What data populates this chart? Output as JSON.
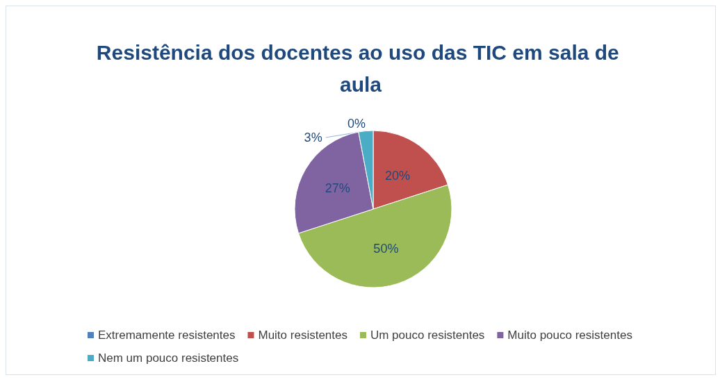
{
  "chart_data": {
    "type": "pie",
    "title": "Resistência dos docentes ao uso das TIC em sala de aula",
    "categories": [
      "Extremamente resistentes",
      "Muito resistentes",
      "Um pouco resistentes",
      "Muito pouco resistentes",
      "Nem um pouco resistentes"
    ],
    "values": [
      0,
      20,
      50,
      27,
      3
    ],
    "colors": [
      "#4f81bd",
      "#c0504d",
      "#9bbb59",
      "#8064a2",
      "#4bacc6"
    ],
    "value_labels": [
      "0%",
      "20%",
      "50%",
      "27%",
      "3%"
    ],
    "legend": "bottom"
  }
}
